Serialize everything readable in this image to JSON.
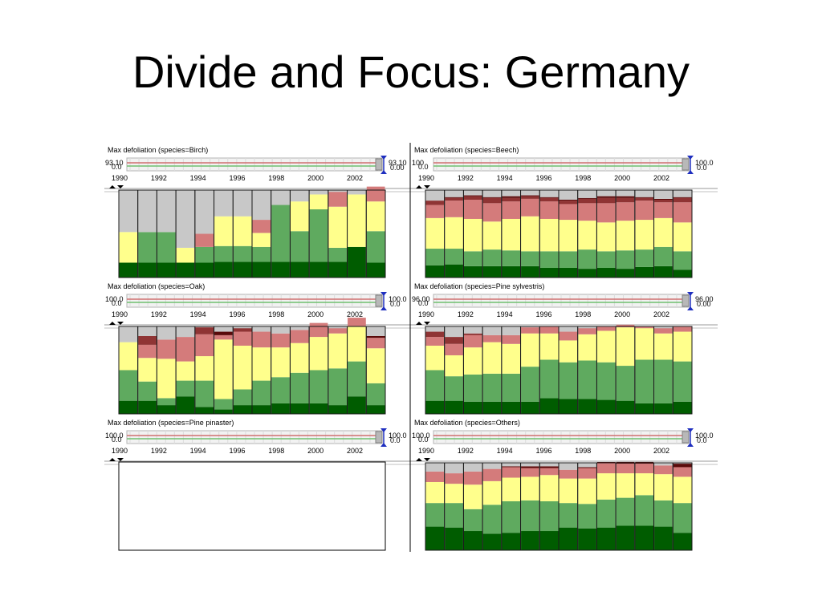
{
  "slide": {
    "title": "Divide and Focus: Germany"
  },
  "colors": {
    "dark_green": "#005c00",
    "mid_green": "#5faa5f",
    "yellow": "#ffff8c",
    "pink": "#d47b7b",
    "dark_red": "#8f3434",
    "maroon": "#5a0a0a",
    "gray": "#c8c8c8",
    "slider_red": "#d07070",
    "slider_green": "#70c070",
    "handle_blue": "#1f2fbf"
  },
  "chart_data": [
    {
      "type": "bar",
      "stacked": true,
      "title": "Max defoliation (species=Birch)",
      "slider": {
        "left_readout": "93.10",
        "left_sub": "0.0",
        "right_readout": "93.10",
        "right_sub": "0.00"
      },
      "x": [
        1990,
        1991,
        1992,
        1993,
        1994,
        1995,
        1996,
        1997,
        1998,
        1999,
        2000,
        2001,
        2002,
        2003
      ],
      "x_tick_labels": [
        "1990",
        "1992",
        "1994",
        "1996",
        "1998",
        "2000",
        "2002"
      ],
      "series": [
        {
          "values": [
            17,
            17,
            17,
            17,
            17,
            18,
            18,
            18,
            18,
            18,
            18,
            18,
            35,
            17
          ]
        },
        {
          "values": [
            0,
            35,
            35,
            0,
            18,
            18,
            18,
            17,
            65,
            35,
            60,
            16,
            0,
            36
          ]
        },
        {
          "values": [
            35,
            0,
            0,
            17,
            0,
            34,
            34,
            16,
            0,
            34,
            17,
            47,
            60,
            34
          ]
        },
        {
          "values": [
            0,
            0,
            0,
            0,
            15,
            0,
            0,
            15,
            0,
            0,
            0,
            17,
            0,
            17
          ]
        },
        {
          "values": [
            0,
            0,
            0,
            0,
            0,
            0,
            0,
            0,
            0,
            0,
            0,
            0,
            0,
            0
          ]
        },
        {
          "values": [
            0,
            0,
            0,
            0,
            0,
            0,
            0,
            0,
            0,
            0,
            0,
            0,
            0,
            0
          ]
        },
        {
          "values": [
            48,
            48,
            48,
            66,
            50,
            30,
            30,
            34,
            17,
            13,
            5,
            2,
            5,
            0
          ]
        }
      ]
    },
    {
      "type": "bar",
      "stacked": true,
      "title": "Max defoliation (species=Beech)",
      "slider": {
        "left_readout": "100",
        "left_sub": "0.0",
        "right_readout": "100.0",
        "right_sub": "0.0"
      },
      "x": [
        1990,
        1991,
        1992,
        1993,
        1994,
        1995,
        1996,
        1997,
        1998,
        1999,
        2000,
        2001,
        2002,
        2003
      ],
      "x_tick_labels": [
        "1990",
        "1992",
        "1994",
        "1996",
        "1998",
        "2000",
        "2002"
      ],
      "series": [
        {
          "values": [
            14,
            15,
            13,
            13,
            13,
            13,
            11,
            11,
            10,
            11,
            10,
            12,
            13,
            9
          ]
        },
        {
          "values": [
            19,
            18,
            17,
            19,
            18,
            17,
            19,
            19,
            22,
            19,
            21,
            20,
            22,
            21
          ]
        },
        {
          "values": [
            35,
            36,
            37,
            32,
            36,
            40,
            37,
            36,
            33,
            33,
            34,
            34,
            33,
            33
          ]
        },
        {
          "values": [
            15,
            19,
            22,
            21,
            20,
            20,
            20,
            18,
            20,
            22,
            21,
            22,
            18,
            23
          ]
        },
        {
          "values": [
            5,
            3,
            4,
            6,
            4,
            3,
            4,
            4,
            5,
            6,
            5,
            3,
            3,
            5
          ]
        },
        {
          "values": [
            0,
            1,
            1,
            1,
            2,
            1,
            1,
            1,
            1,
            2,
            2,
            1,
            1,
            1
          ]
        },
        {
          "values": [
            12,
            8,
            6,
            8,
            7,
            6,
            8,
            11,
            9,
            7,
            7,
            8,
            10,
            8
          ]
        }
      ]
    },
    {
      "type": "bar",
      "stacked": true,
      "title": "Max defoliation (species=Oak)",
      "slider": {
        "left_readout": "100.0",
        "left_sub": "0.0",
        "right_readout": "100.0",
        "right_sub": "0.0"
      },
      "x": [
        1990,
        1991,
        1992,
        1993,
        1994,
        1995,
        1996,
        1997,
        1998,
        1999,
        2000,
        2001,
        2002,
        2003
      ],
      "x_tick_labels": [
        "1990",
        "1992",
        "1994",
        "1996",
        "1998",
        "2000",
        "2002"
      ],
      "series": [
        {
          "values": [
            15,
            15,
            10,
            20,
            8,
            5,
            10,
            10,
            12,
            12,
            12,
            10,
            20,
            10
          ]
        },
        {
          "values": [
            35,
            22,
            8,
            18,
            30,
            12,
            18,
            28,
            30,
            35,
            38,
            42,
            40,
            25
          ]
        },
        {
          "values": [
            32,
            27,
            45,
            22,
            28,
            68,
            50,
            38,
            34,
            34,
            38,
            40,
            40,
            40
          ]
        },
        {
          "values": [
            0,
            15,
            22,
            28,
            25,
            5,
            16,
            18,
            16,
            15,
            16,
            6,
            10,
            12
          ]
        },
        {
          "values": [
            0,
            10,
            0,
            0,
            8,
            0,
            4,
            0,
            0,
            0,
            0,
            0,
            0,
            0
          ]
        },
        {
          "values": [
            0,
            0,
            0,
            0,
            0,
            4,
            0,
            0,
            0,
            0,
            0,
            0,
            0,
            2
          ]
        },
        {
          "values": [
            18,
            11,
            15,
            12,
            1,
            6,
            2,
            6,
            8,
            4,
            -4,
            2,
            -10,
            11
          ]
        }
      ]
    },
    {
      "type": "bar",
      "stacked": true,
      "title": "Max defoliation (species=Pine sylvestris)",
      "slider": {
        "left_readout": "96.00",
        "left_sub": "0.0",
        "right_readout": "96.00",
        "right_sub": "0.00"
      },
      "x": [
        1990,
        1991,
        1992,
        1993,
        1994,
        1995,
        1996,
        1997,
        1998,
        1999,
        2000,
        2001,
        2002,
        2003
      ],
      "x_tick_labels": [
        "1990",
        "1992",
        "1994",
        "1996",
        "1998",
        "2000",
        "2002"
      ],
      "series": [
        {
          "values": [
            15,
            15,
            14,
            14,
            14,
            14,
            18,
            17,
            17,
            16,
            15,
            12,
            12,
            14
          ]
        },
        {
          "values": [
            35,
            28,
            31,
            32,
            32,
            40,
            44,
            42,
            44,
            43,
            40,
            50,
            50,
            46
          ]
        },
        {
          "values": [
            28,
            24,
            31,
            36,
            34,
            38,
            30,
            25,
            30,
            36,
            44,
            36,
            30,
            34
          ]
        },
        {
          "values": [
            10,
            13,
            14,
            8,
            10,
            7,
            8,
            10,
            7,
            5,
            3,
            2,
            6,
            6
          ]
        },
        {
          "values": [
            6,
            8,
            2,
            0,
            0,
            0,
            0,
            0,
            0,
            0,
            0,
            0,
            0,
            0
          ]
        },
        {
          "values": [
            0,
            0,
            0,
            0,
            0,
            0,
            0,
            0,
            0,
            0,
            0,
            0,
            0,
            0
          ]
        },
        {
          "values": [
            6,
            12,
            8,
            10,
            10,
            1,
            0,
            6,
            2,
            0,
            -2,
            0,
            2,
            0
          ]
        }
      ]
    },
    {
      "type": "bar",
      "stacked": true,
      "title": "Max defoliation (species=Pine pinaster)",
      "slider": {
        "left_readout": "100.0",
        "left_sub": "0.0",
        "right_readout": "100.0",
        "right_sub": "0.0"
      },
      "x": [
        1990,
        1991,
        1992,
        1993,
        1994,
        1995,
        1996,
        1997,
        1998,
        1999,
        2000,
        2001,
        2002,
        2003
      ],
      "x_tick_labels": [
        "1990",
        "1992",
        "1994",
        "1996",
        "1998",
        "2000",
        "2002"
      ],
      "series": []
    },
    {
      "type": "bar",
      "stacked": true,
      "title": "Max defoliation (species=Others)",
      "slider": {
        "left_readout": "100.0",
        "left_sub": "0.0",
        "right_readout": "100.0",
        "right_sub": "0.0"
      },
      "x": [
        1990,
        1991,
        1992,
        1993,
        1994,
        1995,
        1996,
        1997,
        1998,
        1999,
        2000,
        2001,
        2002,
        2003
      ],
      "x_tick_labels": [
        "1990",
        "1992",
        "1994",
        "1996",
        "1998",
        "2000",
        "2002"
      ],
      "series": [
        {
          "values": [
            27,
            26,
            22,
            19,
            20,
            22,
            22,
            26,
            25,
            26,
            28,
            28,
            27,
            20
          ]
        },
        {
          "values": [
            27,
            28,
            25,
            33,
            36,
            35,
            34,
            28,
            28,
            32,
            32,
            35,
            30,
            34
          ]
        },
        {
          "values": [
            24,
            22,
            28,
            27,
            27,
            27,
            30,
            28,
            29,
            30,
            28,
            25,
            30,
            30
          ]
        },
        {
          "values": [
            12,
            12,
            15,
            14,
            12,
            10,
            8,
            10,
            12,
            12,
            11,
            11,
            10,
            11
          ]
        },
        {
          "values": [
            0,
            0,
            0,
            0,
            0,
            0,
            0,
            0,
            0,
            0,
            0,
            0,
            0,
            0
          ]
        },
        {
          "values": [
            0,
            0,
            0,
            0,
            1,
            2,
            2,
            0,
            1,
            1,
            2,
            2,
            0,
            4
          ]
        },
        {
          "values": [
            10,
            12,
            10,
            7,
            4,
            4,
            4,
            8,
            5,
            1,
            0,
            0,
            3,
            1
          ]
        }
      ]
    }
  ]
}
